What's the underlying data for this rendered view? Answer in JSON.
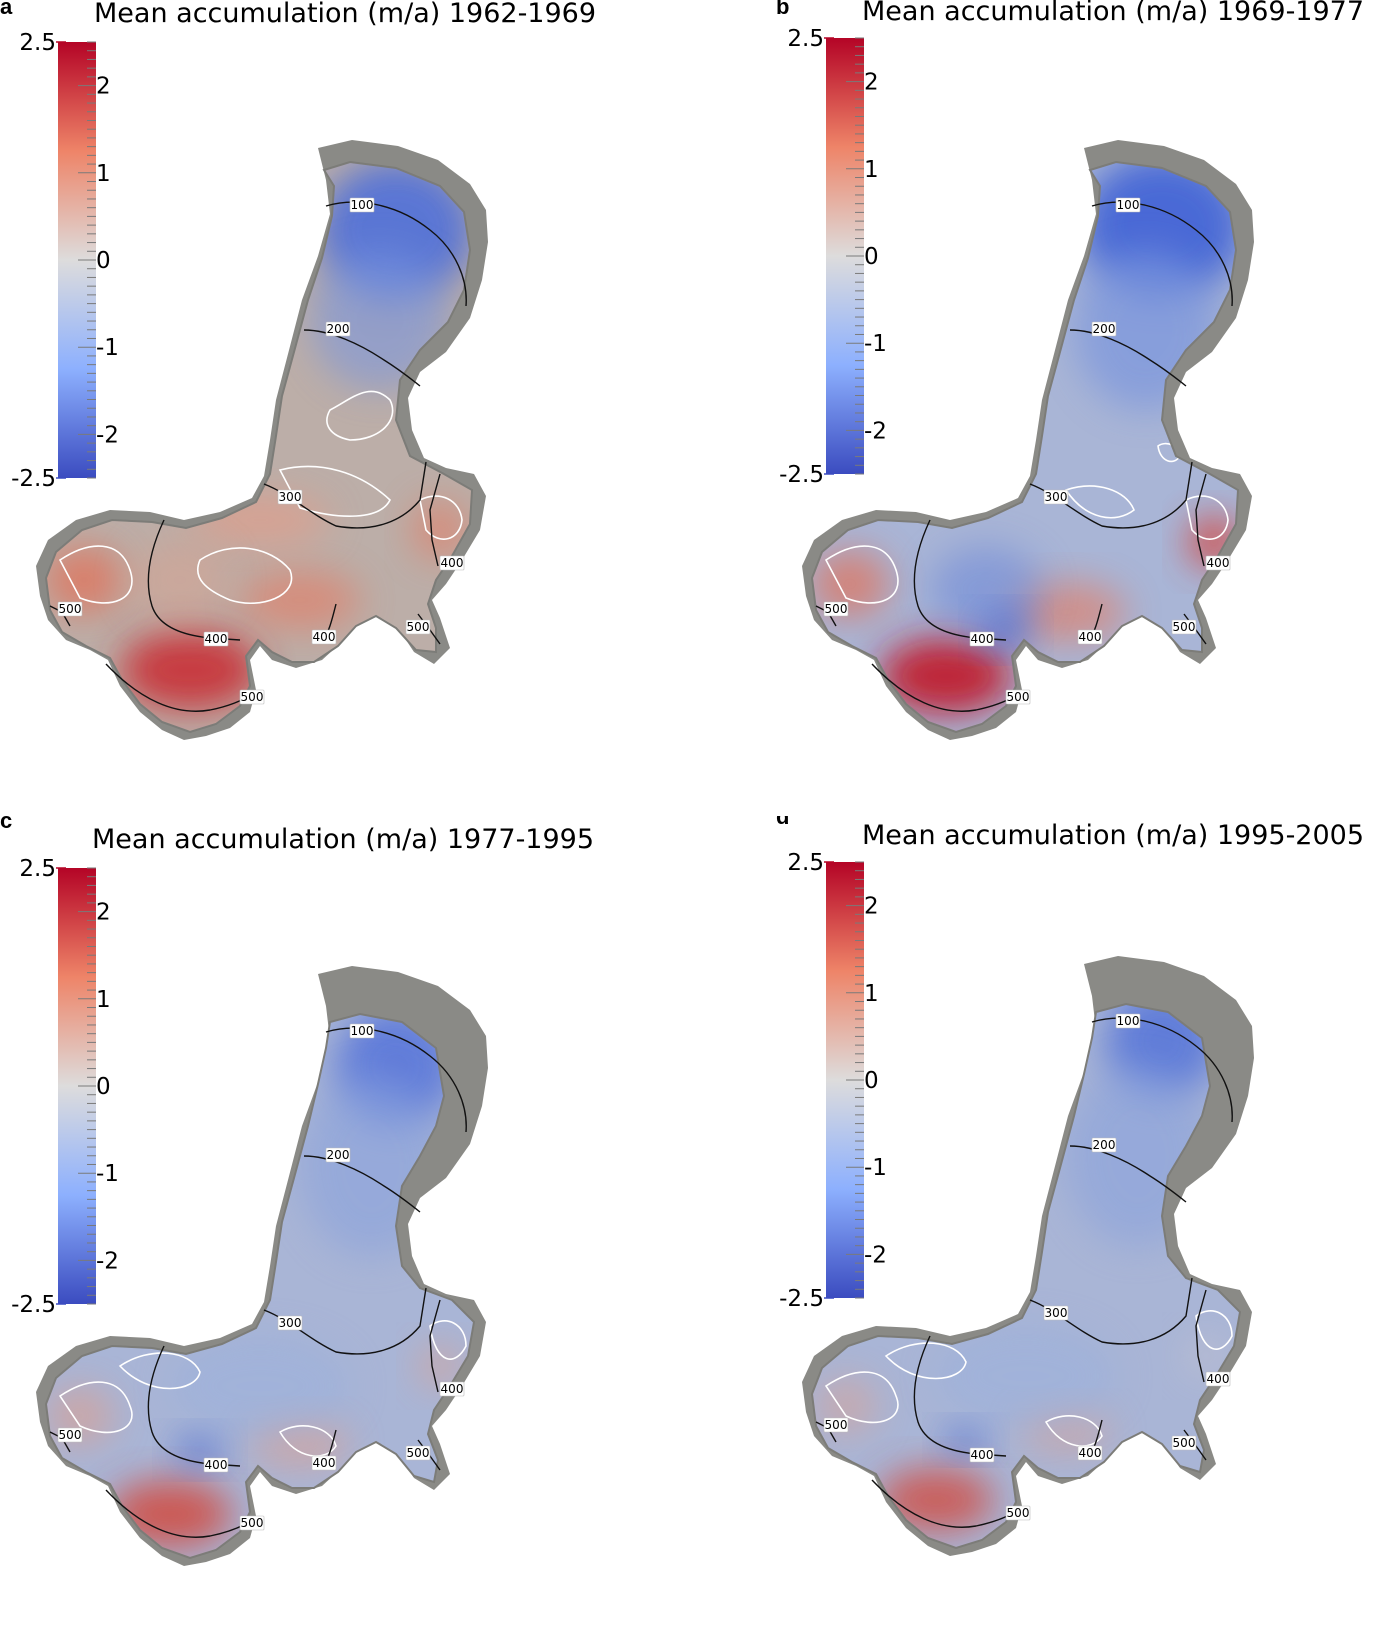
{
  "colorbar": {
    "max_label": "2.5",
    "min_label": "-2.5",
    "range": [
      -2.5,
      2.5
    ],
    "tick_values": [
      2,
      1,
      0,
      -1,
      -2
    ],
    "tick_labels": [
      "2",
      "1",
      "0",
      "-1",
      "-2"
    ],
    "colors": {
      "high": "#b40426",
      "mid": "#dddcdc",
      "low": "#3b4cc0"
    }
  },
  "colors": {
    "outline": "#8a8a86",
    "ice_outline": "#7c7c78",
    "contour": "#111111",
    "iso_line": "#ffffff"
  },
  "contour_labels": [
    "100",
    "200",
    "300",
    "400",
    "500"
  ],
  "panels": [
    {
      "letter": "a",
      "title": "Mean accumulation (m/a) 1962-1969"
    },
    {
      "letter": "b",
      "title": "Mean accumulation (m/a) 1969-1977"
    },
    {
      "letter": "c",
      "title": "Mean accumulation (m/a) 1977-1995"
    },
    {
      "letter": "d",
      "title": "Mean accumulation (m/a) 1995-2005"
    }
  ]
}
